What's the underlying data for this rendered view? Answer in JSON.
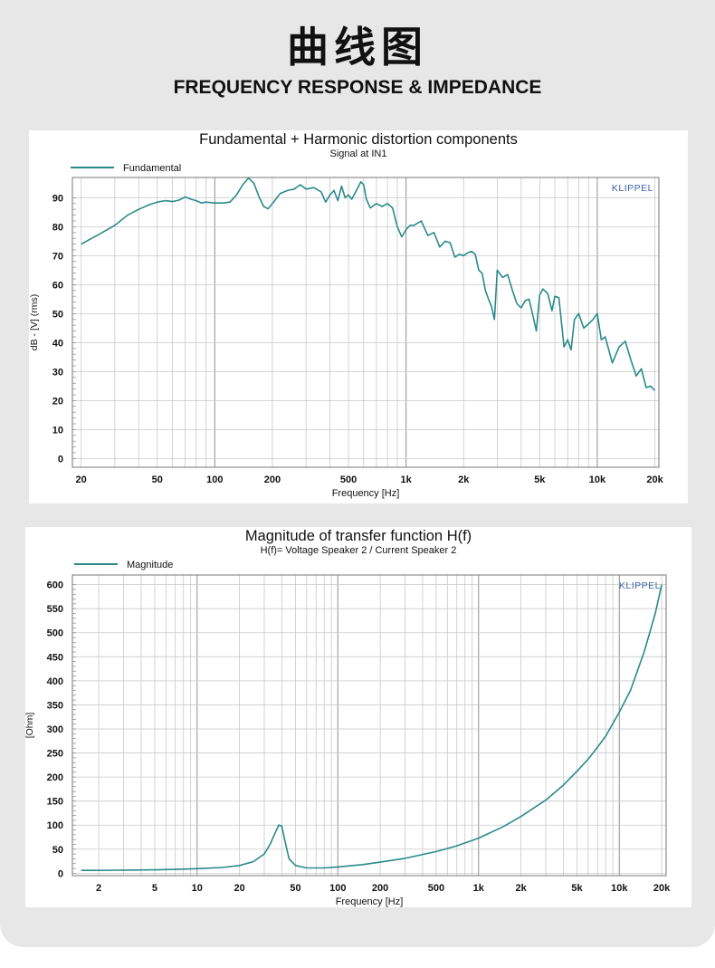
{
  "header": {
    "title_cn": "曲线图",
    "title_en": "FREQUENCY RESPONSE & IMPEDANCE"
  },
  "colors": {
    "curve": "#2a8a8a",
    "grid": "#c9c9c9",
    "brand": "#3a62a8"
  },
  "chart_data": [
    {
      "type": "line",
      "title": "Fundamental + Harmonic distortion components",
      "subtitle": "Signal at IN1",
      "xlabel": "Frequency [Hz]",
      "ylabel": "dB - [V] (rms)",
      "brand": "KLIPPEL",
      "x_scale": "log",
      "xlim": [
        18,
        21000
      ],
      "ylim": [
        -3,
        97
      ],
      "x_ticks": [
        {
          "v": 20,
          "label": "20"
        },
        {
          "v": 50,
          "label": "50"
        },
        {
          "v": 100,
          "label": "100"
        },
        {
          "v": 200,
          "label": "200"
        },
        {
          "v": 500,
          "label": "500"
        },
        {
          "v": 1000,
          "label": "1k"
        },
        {
          "v": 2000,
          "label": "2k"
        },
        {
          "v": 5000,
          "label": "5k"
        },
        {
          "v": 10000,
          "label": "10k"
        },
        {
          "v": 20000,
          "label": "20k"
        }
      ],
      "y_ticks": [
        0,
        10,
        20,
        30,
        40,
        50,
        60,
        70,
        80,
        90
      ],
      "grid": true,
      "legend_position": "top-left",
      "series": [
        {
          "name": "Fundamental",
          "x": [
            20,
            25,
            30,
            35,
            40,
            45,
            50,
            55,
            60,
            65,
            70,
            75,
            80,
            85,
            90,
            100,
            110,
            120,
            130,
            140,
            150,
            160,
            170,
            180,
            190,
            200,
            220,
            240,
            260,
            280,
            300,
            330,
            360,
            380,
            400,
            420,
            440,
            460,
            480,
            500,
            520,
            550,
            580,
            600,
            620,
            650,
            700,
            750,
            800,
            850,
            900,
            950,
            1000,
            1050,
            1100,
            1200,
            1300,
            1400,
            1500,
            1600,
            1700,
            1800,
            1900,
            2000,
            2100,
            2200,
            2300,
            2400,
            2500,
            2600,
            2700,
            2800,
            2900,
            3000,
            3200,
            3400,
            3600,
            3800,
            4000,
            4200,
            4400,
            4600,
            4800,
            5000,
            5200,
            5500,
            5800,
            6000,
            6300,
            6700,
            7000,
            7300,
            7600,
            8000,
            8500,
            9000,
            9500,
            10000,
            10500,
            11000,
            12000,
            13000,
            14000,
            15000,
            16000,
            17000,
            18000,
            19000,
            20000
          ],
          "y": [
            74,
            77.5,
            80.5,
            84,
            86,
            87.5,
            88.5,
            89,
            88.7,
            89.2,
            90.3,
            89.5,
            89,
            88.2,
            88.5,
            88.2,
            88.2,
            88.5,
            91,
            94.5,
            96.8,
            95,
            90.5,
            87,
            86.2,
            88,
            91.5,
            92.5,
            93,
            94.5,
            93,
            93.5,
            92,
            88.5,
            91,
            92.5,
            89,
            94,
            90,
            91,
            89.5,
            92.5,
            95.5,
            94.5,
            89.5,
            86.5,
            88,
            87,
            88,
            86.5,
            80,
            76.5,
            79,
            80.5,
            80.5,
            82,
            77,
            78,
            73,
            75,
            74.5,
            69.5,
            70.5,
            70,
            71,
            71.5,
            70.5,
            65,
            64,
            58,
            55,
            52.5,
            48,
            65,
            62.5,
            63.5,
            58,
            53.5,
            52,
            54.5,
            55,
            49.5,
            44,
            56.5,
            58.5,
            57,
            51,
            56,
            55.5,
            38.5,
            41,
            37.5,
            48,
            50,
            45,
            46.5,
            48,
            50,
            41,
            42,
            33,
            38.5,
            40.5,
            34,
            28.5,
            31,
            24.5,
            25,
            23.5
          ]
        }
      ]
    },
    {
      "type": "line",
      "title": "Magnitude of transfer function H(f)",
      "subtitle": "H(f)= Voltage Speaker 2 / Current Speaker 2",
      "xlabel": "Frequency [Hz]",
      "ylabel": "[Ohm]",
      "brand": "KLIPPEL",
      "x_scale": "log",
      "xlim": [
        1.3,
        21500
      ],
      "ylim": [
        -5,
        620
      ],
      "x_ticks": [
        {
          "v": 2,
          "label": "2"
        },
        {
          "v": 5,
          "label": "5"
        },
        {
          "v": 10,
          "label": "10"
        },
        {
          "v": 20,
          "label": "20"
        },
        {
          "v": 50,
          "label": "50"
        },
        {
          "v": 100,
          "label": "100"
        },
        {
          "v": 200,
          "label": "200"
        },
        {
          "v": 500,
          "label": "500"
        },
        {
          "v": 1000,
          "label": "1k"
        },
        {
          "v": 2000,
          "label": "2k"
        },
        {
          "v": 5000,
          "label": "5k"
        },
        {
          "v": 10000,
          "label": "10k"
        },
        {
          "v": 20000,
          "label": "20k"
        }
      ],
      "y_ticks": [
        0,
        50,
        100,
        150,
        200,
        250,
        300,
        350,
        400,
        450,
        500,
        550,
        600
      ],
      "grid": true,
      "legend_position": "top-left",
      "series": [
        {
          "name": "Magnitude",
          "x": [
            1.5,
            2,
            3,
            5,
            7,
            10,
            15,
            20,
            25,
            30,
            33,
            36,
            38,
            40,
            42,
            45,
            50,
            60,
            80,
            100,
            150,
            200,
            300,
            500,
            700,
            1000,
            1500,
            2000,
            3000,
            4000,
            5000,
            6000,
            7000,
            8000,
            10000,
            12000,
            15000,
            18000,
            20000
          ],
          "y": [
            6,
            6,
            6.5,
            7,
            8,
            9.5,
            12,
            16,
            24,
            40,
            60,
            85,
            100,
            98,
            68,
            30,
            16,
            11,
            11,
            13,
            18,
            23,
            31,
            45,
            57,
            73,
            97,
            118,
            152,
            183,
            212,
            237,
            262,
            285,
            335,
            380,
            460,
            540,
            600
          ]
        }
      ]
    }
  ]
}
